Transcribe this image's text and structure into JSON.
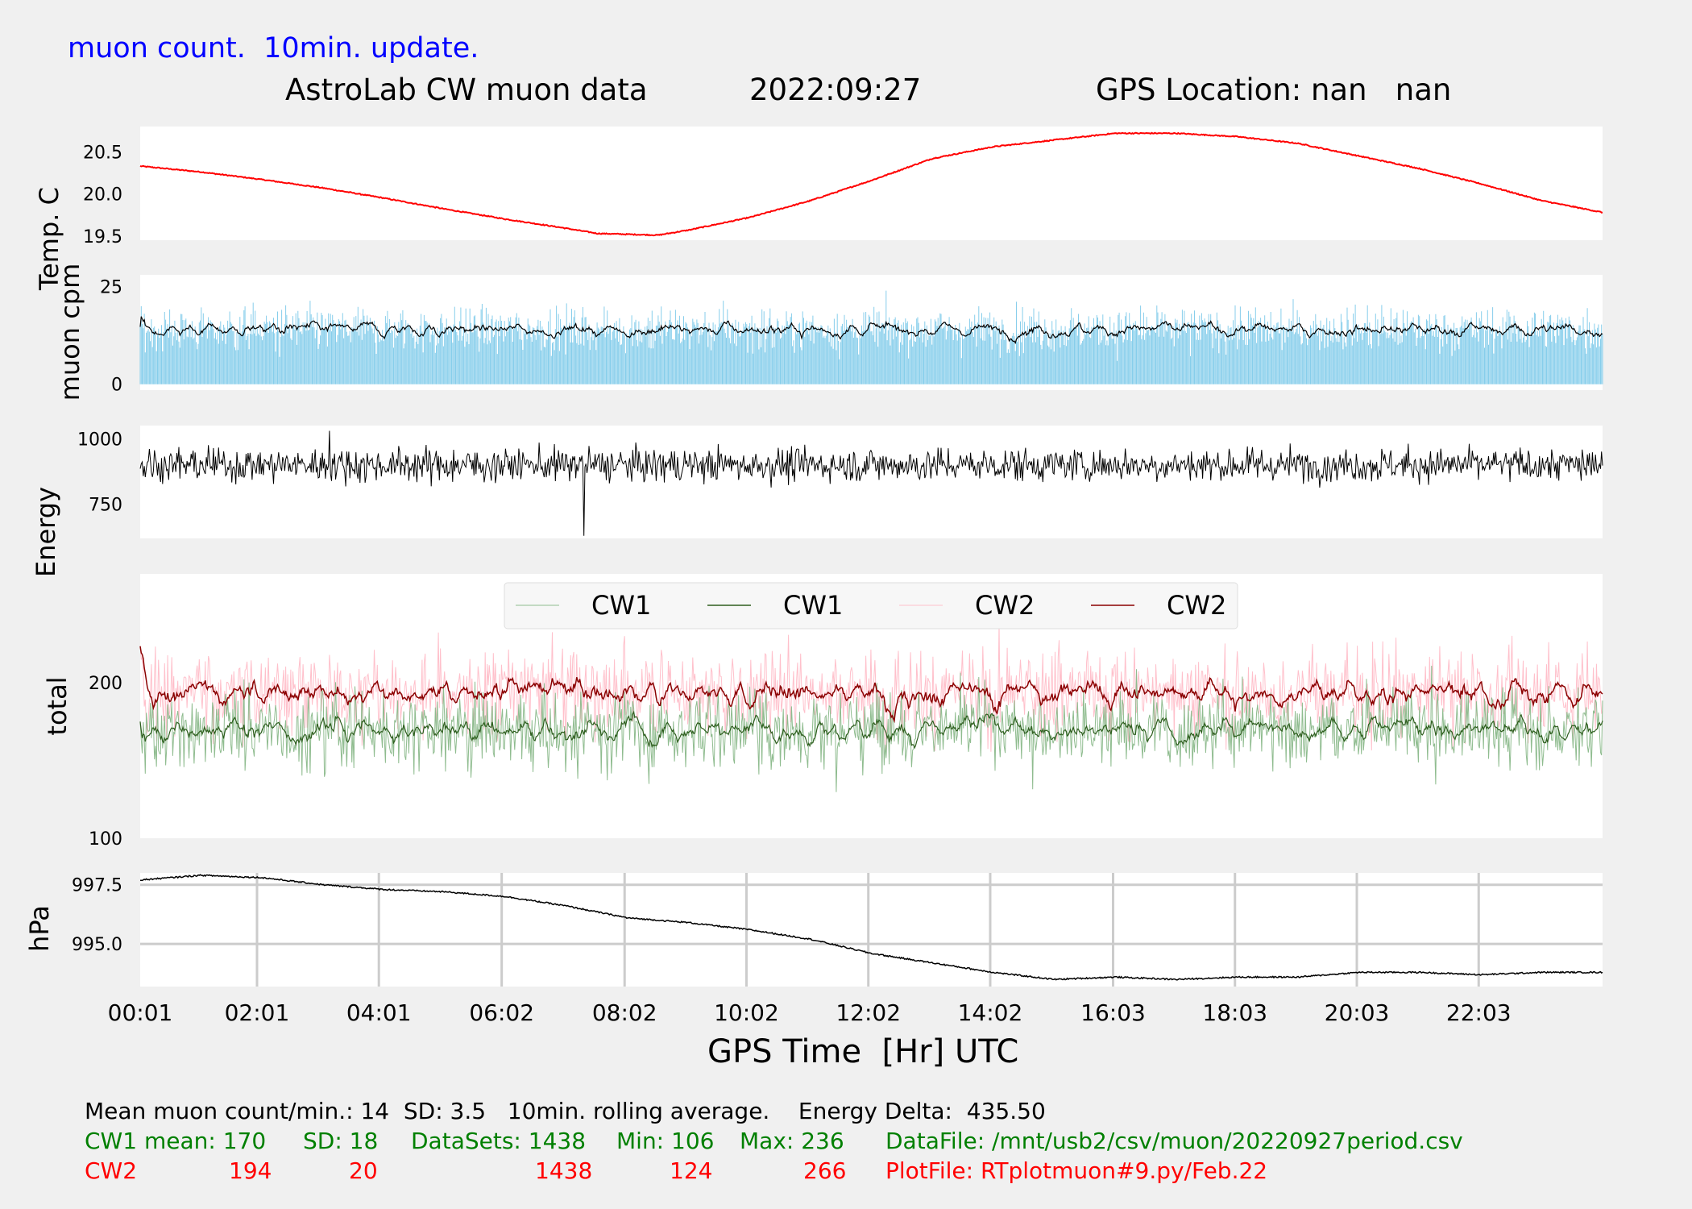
{
  "header": {
    "subtitle": "muon count.  10min. update.",
    "title": "AstroLab CW muon data",
    "date": "2022:09:27",
    "gps": "GPS Location: nan   nan"
  },
  "colors": {
    "background": "#f0f0f0",
    "panel": "#ffffff",
    "temp": "#ff0000",
    "muon_bars": "#87ceeb",
    "muon_avg": "#000000",
    "energy": "#000000",
    "cw1_raw": "#8fbc8f",
    "cw1_avg": "#2e5e1e",
    "cw2_raw": "#ffc0cb",
    "cw2_avg": "#8b0000",
    "pressure": "#000000",
    "grid": "#cccccc",
    "subtitle": "#0000ff"
  },
  "chart_data": [
    {
      "type": "line",
      "ylabel": "Temp. C",
      "yticks": [
        "19.5",
        "20.0",
        "20.5"
      ],
      "ylim": [
        19.45,
        20.8
      ],
      "x_hours": [
        0,
        1,
        2,
        3,
        4,
        5,
        6,
        7,
        7.5,
        8,
        8.5,
        9,
        10,
        11,
        12,
        13,
        14,
        15,
        16,
        17,
        18,
        19,
        20,
        21,
        22,
        23,
        24
      ],
      "values": [
        20.33,
        20.26,
        20.17,
        20.07,
        19.95,
        19.82,
        19.7,
        19.59,
        19.53,
        19.52,
        19.51,
        19.57,
        19.72,
        19.92,
        20.16,
        20.42,
        20.56,
        20.64,
        20.72,
        20.72,
        20.68,
        20.6,
        20.45,
        20.3,
        20.12,
        19.92,
        19.78
      ]
    },
    {
      "type": "bar",
      "ylabel": "muon cpm",
      "yticks": [
        "0",
        "25"
      ],
      "ylim": [
        -1.5,
        28
      ],
      "mean": 14,
      "sd": 3.5,
      "rolling_average": "10min.",
      "series": [
        {
          "name": "muon count / min",
          "kind": "bars"
        },
        {
          "name": "10min. rolling average",
          "kind": "line",
          "approx_level": 14
        }
      ]
    },
    {
      "type": "line",
      "ylabel": "Energy",
      "yticks": [
        "750",
        "1000"
      ],
      "ylim": [
        620,
        1050
      ],
      "approx_center": 900,
      "approx_min": 630,
      "approx_max": 1030,
      "energy_delta": 435.5
    },
    {
      "type": "line",
      "ylabel": "total",
      "yticks": [
        "100",
        "200"
      ],
      "ylim": [
        100,
        270
      ],
      "legend": [
        "CW1",
        "CW1",
        "CW2",
        "CW2"
      ],
      "legend_position": "top-center",
      "series": [
        {
          "name": "CW1",
          "kind": "raw",
          "mean": 170,
          "sd": 18,
          "datasets": 1438,
          "min": 106,
          "max": 236
        },
        {
          "name": "CW1",
          "kind": "rolling",
          "mean": 170
        },
        {
          "name": "CW2",
          "kind": "raw",
          "mean": 194,
          "sd": 20,
          "datasets": 1438,
          "min": 124,
          "max": 266
        },
        {
          "name": "CW2",
          "kind": "rolling",
          "mean": 194
        }
      ]
    },
    {
      "type": "line",
      "ylabel": "hPa",
      "yticks": [
        "995.0",
        "997.5"
      ],
      "ylim": [
        993.2,
        998.0
      ],
      "grid": true,
      "x_hours": [
        0,
        1,
        2,
        3,
        4,
        5,
        6,
        7,
        8,
        9,
        10,
        11,
        12,
        13,
        14,
        15,
        16,
        17,
        18,
        19,
        20,
        21,
        22,
        23,
        24
      ],
      "values": [
        997.7,
        997.9,
        997.8,
        997.5,
        997.3,
        997.2,
        997.0,
        996.6,
        996.1,
        995.9,
        995.6,
        995.2,
        994.6,
        994.2,
        993.8,
        993.5,
        993.6,
        993.5,
        993.6,
        993.6,
        993.8,
        993.8,
        993.7,
        993.8,
        993.8
      ]
    }
  ],
  "x_axis": {
    "label": "GPS Time  [Hr] UTC",
    "ticks": [
      "00:01",
      "02:01",
      "04:01",
      "06:02",
      "08:02",
      "10:02",
      "12:02",
      "14:02",
      "16:03",
      "18:03",
      "20:03",
      "22:03"
    ],
    "tick_hours": [
      0,
      1.917,
      3.917,
      5.933,
      7.95,
      9.95,
      11.95,
      13.95,
      15.967,
      17.967,
      19.967,
      21.967
    ]
  },
  "footer": {
    "line1": "Mean muon count/min.: 14  SD: 3.5   10min. rolling average.    Energy Delta:  435.50",
    "cw1": {
      "label": "CW1 mean: 170",
      "sd": "SD: 18",
      "datasets": "DataSets: 1438",
      "min": "Min: 106",
      "max": "Max: 236",
      "file": "DataFile: /mnt/usb2/csv/muon/20220927period.csv"
    },
    "cw2": {
      "label": "CW2",
      "mean": "194",
      "sd": "20",
      "datasets": "1438",
      "min": "124",
      "max": "266",
      "file": "PlotFile: RTplotmuon#9.py/Feb.22"
    }
  }
}
